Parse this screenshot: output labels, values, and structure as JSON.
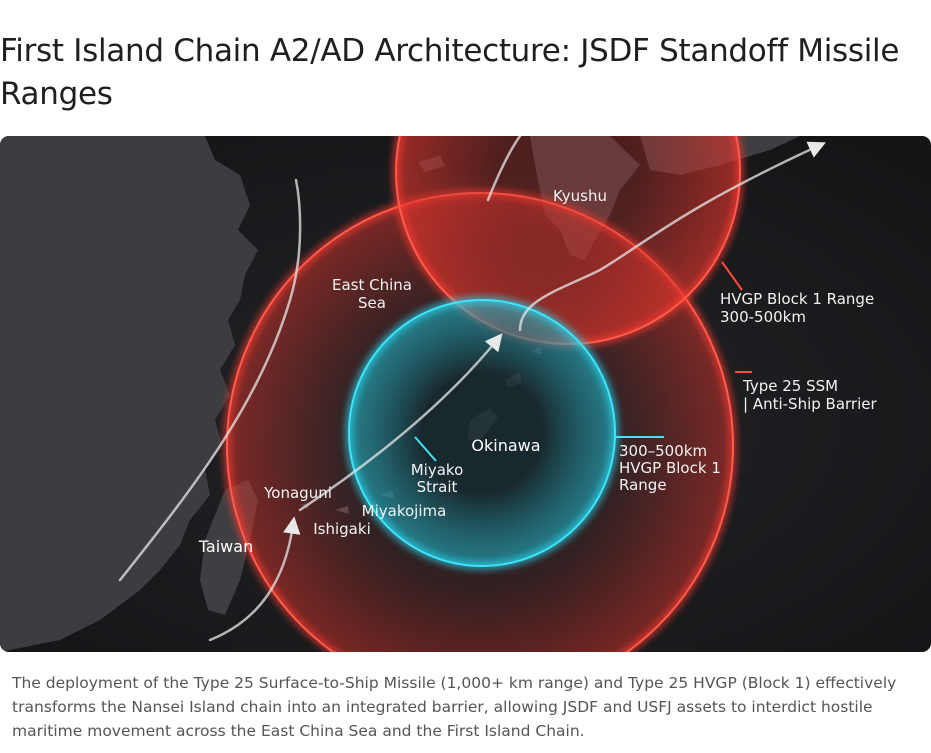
{
  "title": "First Island Chain A2/AD Architecture: JSDF Standoff Missile Ranges",
  "map": {
    "labels": [
      {
        "lines": [
          "Kyushu"
        ]
      },
      {
        "lines": [
          "East China",
          "Sea"
        ]
      },
      {
        "lines": [
          "Okinawa"
        ]
      },
      {
        "lines": [
          "Miyako",
          "Strait"
        ]
      },
      {
        "lines": [
          "Yonaguni"
        ]
      },
      {
        "lines": [
          "Miyakojima"
        ]
      },
      {
        "lines": [
          "Ishigaki"
        ]
      },
      {
        "lines": [
          "Taiwan"
        ]
      }
    ],
    "callouts": [
      {
        "lines": [
          "HVGP Block 1 Range",
          "300-500km"
        ]
      },
      {
        "lines": [
          "Type 25 SSM",
          "| Anti-Ship Barrier"
        ]
      },
      {
        "lines": [
          "300–500km",
          "HVGP Block 1",
          "Range"
        ]
      }
    ]
  },
  "caption": [
    "The deployment of the Type 25 Surface-to-Ship Missile (1,000+ km range) and Type 25 HVGP (Block 1) effectively",
    "transforms the Nansei Island chain into an integrated barrier, allowing JSDF and USFJ assets to interdict hostile",
    "maritime movement across the East China Sea and the First Island Chain."
  ]
}
